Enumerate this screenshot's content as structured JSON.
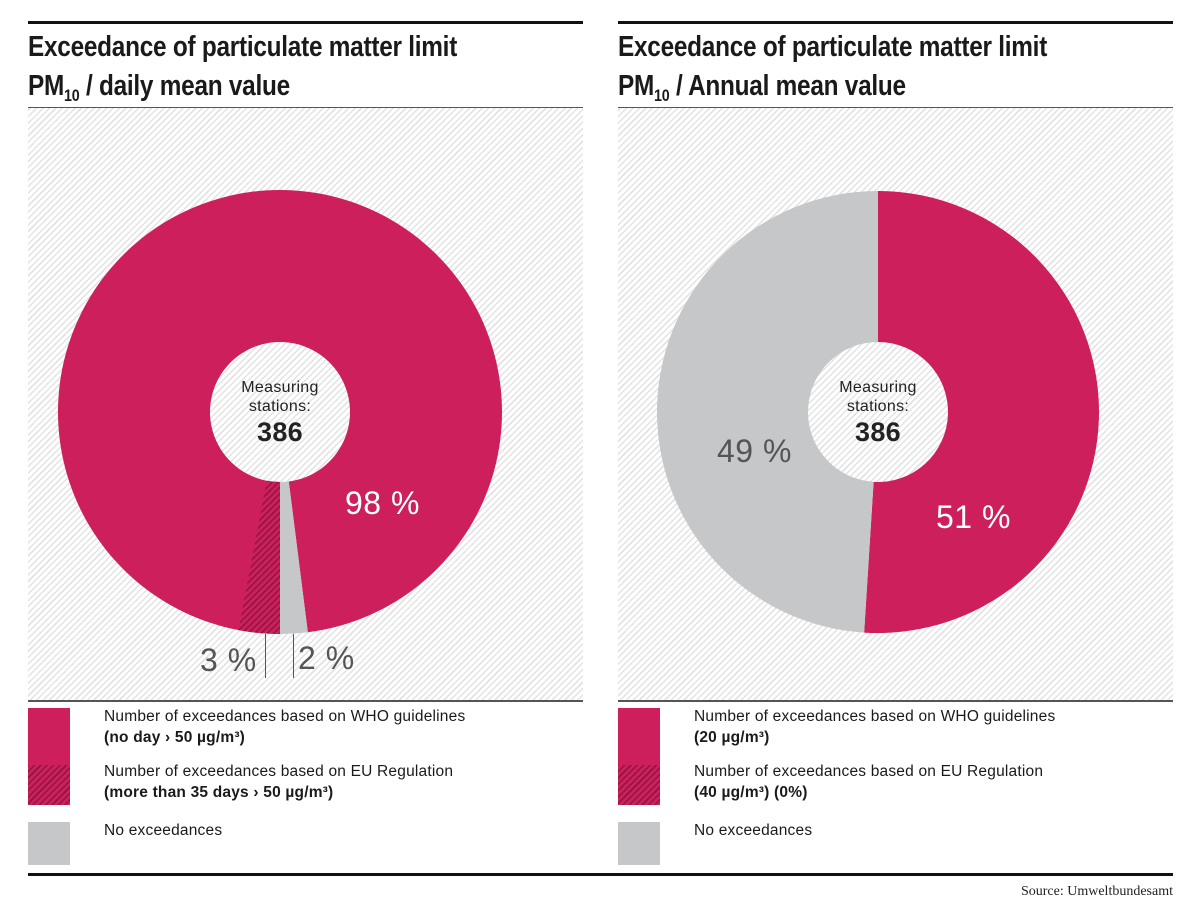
{
  "colors": {
    "who": "#cc1f5c",
    "eu_hatch": "#8e1640",
    "none": "#c6c7c9"
  },
  "chart_data": [
    {
      "type": "pie",
      "title_main": "Exceedance of particulate matter limit",
      "title_pm": "PM",
      "title_sub": "10",
      "title_rest": "/ daily mean value",
      "center_label": "Measuring stations:",
      "center_value": "386",
      "slices": [
        {
          "name": "Number of exceedances based on WHO guidelines",
          "detail": "(no day › 50 µg/m³)",
          "value": 98,
          "label": "98 %"
        },
        {
          "name": "Number of exceedances based on EU Regulation",
          "detail": "(more than 35 days › 50 µg/m³)",
          "value": 3,
          "label": "3 %"
        },
        {
          "name": "No exceedances",
          "detail": "",
          "value": 2,
          "label": "2 %"
        }
      ],
      "note": "EU Regulation share is a subset shown hatched within the WHO share"
    },
    {
      "type": "pie",
      "title_main": "Exceedance of particulate matter limit",
      "title_pm": "PM",
      "title_sub": "10",
      "title_rest": "/ Annual mean value",
      "center_label": "Measuring stations:",
      "center_value": "386",
      "slices": [
        {
          "name": "Number of exceedances based on WHO guidelines",
          "detail": "(20 µg/m³)",
          "value": 51,
          "label": "51 %"
        },
        {
          "name": "Number of exceedances based on EU Regulation",
          "detail": "(40 µg/m³) (0%)",
          "value": 0,
          "label": ""
        },
        {
          "name": "No exceedances",
          "detail": "",
          "value": 49,
          "label": "49 %"
        }
      ]
    }
  ],
  "source": "Source: Umweltbundesamt"
}
